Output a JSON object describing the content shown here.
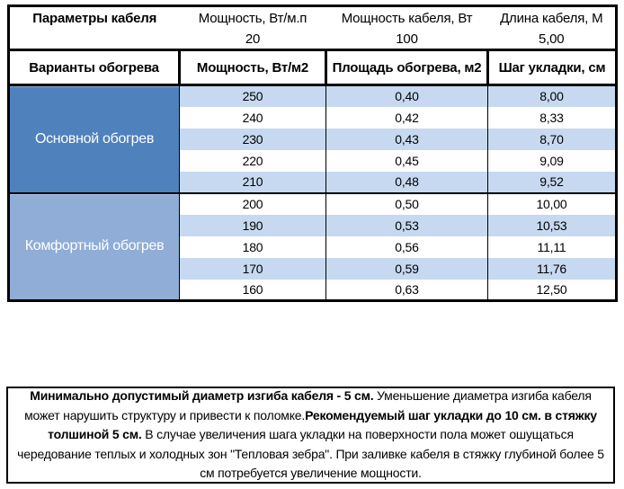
{
  "colors": {
    "primary_section_bg": "#4f81bd",
    "comfort_section_bg": "#8fadd6",
    "row_stripe_bg": "#c6d9f0",
    "border": "#000000",
    "section_label_text": "#ffffff"
  },
  "top_table": {
    "col1_header": "Параметры кабеля",
    "columns": [
      {
        "label": "Мощность, Вт/м.п",
        "value": "20"
      },
      {
        "label": "Мощность кабеля, Вт",
        "value": "100"
      },
      {
        "label": "Длина кабеля, М",
        "value": "5,00"
      }
    ]
  },
  "main_table": {
    "headers": [
      "Варианты обогрева",
      "Мощность, Вт/м2",
      "Площадь обогрева, м2",
      "Шаг укладки, см"
    ],
    "sections": [
      {
        "label": "Основной обогрев",
        "style": "primary",
        "rows": [
          [
            "250",
            "0,40",
            "8,00"
          ],
          [
            "240",
            "0,42",
            "8,33"
          ],
          [
            "230",
            "0,43",
            "8,70"
          ],
          [
            "220",
            "0,45",
            "9,09"
          ],
          [
            "210",
            "0,48",
            "9,52"
          ]
        ]
      },
      {
        "label": "Комфортный обогрев",
        "style": "comfort",
        "rows": [
          [
            "200",
            "0,50",
            "10,00"
          ],
          [
            "190",
            "0,53",
            "10,53"
          ],
          [
            "180",
            "0,56",
            "11,11"
          ],
          [
            "170",
            "0,59",
            "11,76"
          ],
          [
            "160",
            "0,63",
            "12,50"
          ]
        ]
      }
    ]
  },
  "note": {
    "segments": [
      {
        "text": "Минимально допустимый диаметр изгиба кабеля - 5 см.",
        "bold": true
      },
      {
        "text": "  Уменьшение диаметра изгиба кабеля может нарушить структуру и привести к поломке.",
        "bold": false
      },
      {
        "text": "Рекомендуемый шаг укладки до 10 см. в стяжку толшиной 5 см.",
        "bold": true
      },
      {
        "text": " В  случае увеличения шага укладки на поверхности пола может ошущаться чередование теплых и холодных зон \"Тепловая зебра\". При заливке кабеля в стяжку глубиной более 5 см потребуется увеличение мощности.",
        "bold": false
      }
    ]
  }
}
